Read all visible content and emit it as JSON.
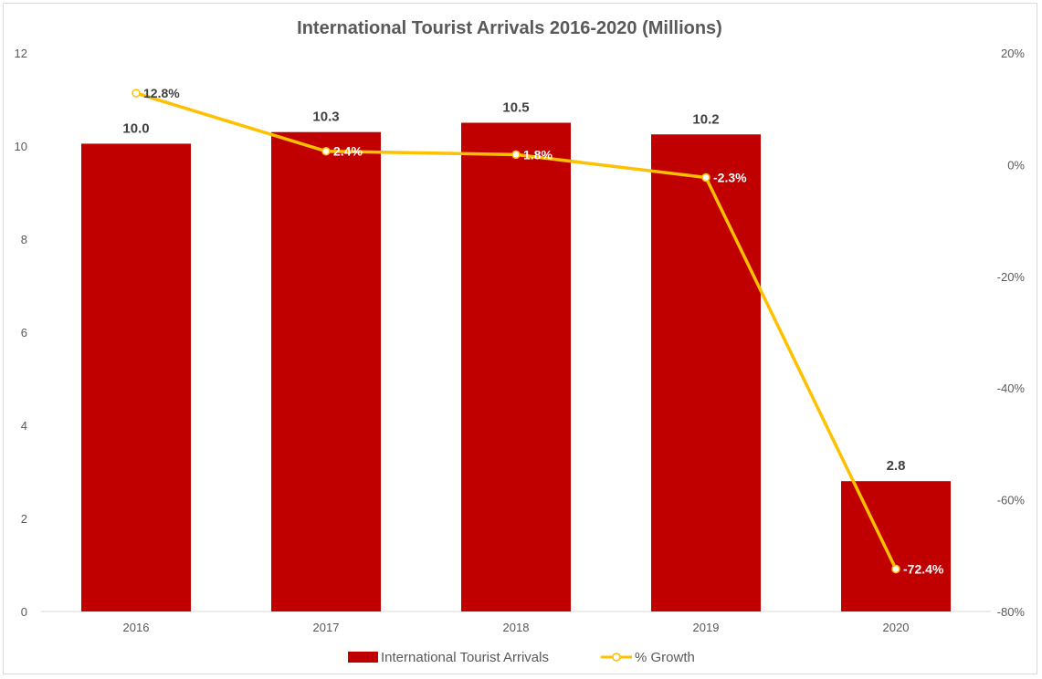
{
  "chart_data": {
    "type": "bar",
    "title": "International Tourist Arrivals 2016-2020 (Millions)",
    "categories": [
      "2016",
      "2017",
      "2018",
      "2019",
      "2020"
    ],
    "series": [
      {
        "name": "International Tourist Arrivals",
        "type": "bar",
        "axis": "left",
        "color": "#c00000",
        "values": [
          10.05,
          10.3,
          10.5,
          10.25,
          2.8
        ],
        "labels": [
          "10.0",
          "10.3",
          "10.5",
          "10.2",
          "2.8"
        ]
      },
      {
        "name": "% Growth",
        "type": "line",
        "axis": "right",
        "color": "#ffc000",
        "values": [
          12.8,
          2.4,
          1.8,
          -2.3,
          -72.4
        ],
        "labels": [
          "12.8%",
          "2.4%",
          "1.8%",
          "-2.3%",
          "-72.4%"
        ]
      }
    ],
    "left_axis": {
      "ylim": [
        0,
        12
      ],
      "ticks": [
        "0",
        "2",
        "4",
        "6",
        "8",
        "10",
        "12"
      ]
    },
    "right_axis": {
      "ylim": [
        -80,
        20
      ],
      "ticks": [
        "-80%",
        "-60%",
        "-40%",
        "-20%",
        "0%",
        "20%"
      ]
    },
    "grid": false,
    "legend_position": "bottom"
  }
}
